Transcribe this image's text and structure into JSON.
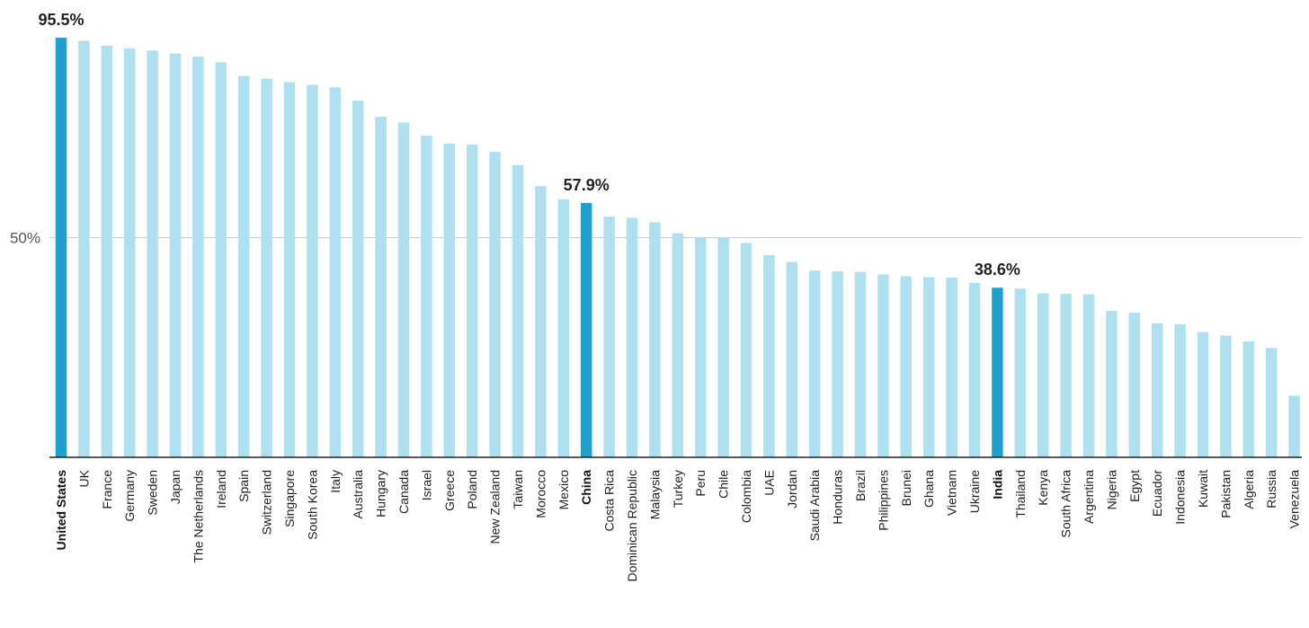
{
  "chart_data": {
    "type": "bar",
    "title": "",
    "xlabel": "",
    "ylabel": "",
    "ylim": [
      0,
      100
    ],
    "grid": "horizontal line at 50%",
    "y_ticks": [
      {
        "value": 50,
        "label": "50%"
      }
    ],
    "highlight_color": "#1ea2cd",
    "base_color": "#aee0ef",
    "categories": [
      "United States",
      "UK",
      "France",
      "Germany",
      "Sweden",
      "Japan",
      "The Netherlands",
      "Ireland",
      "Spain",
      "Switzerland",
      "Singapore",
      "South Korea",
      "Italy",
      "Australia",
      "Hungary",
      "Canada",
      "Israel",
      "Greece",
      "Poland",
      "New Zealand",
      "Taiwan",
      "Morocco",
      "Mexico",
      "China",
      "Costa Rica",
      "Dominican Republic",
      "Malaysia",
      "Turkey",
      "Peru",
      "Chile",
      "Colombia",
      "UAE",
      "Jordan",
      "Saudi Arabia",
      "Honduras",
      "Brazil",
      "Philippines",
      "Brunei",
      "Ghana",
      "Vietnam",
      "Ukraine",
      "India",
      "Thailand",
      "Kenya",
      "South Africa",
      "Argentina",
      "Nigeria",
      "Egypt",
      "Ecuador",
      "Indonesia",
      "Kuwait",
      "Pakistan",
      "Algeria",
      "Russia",
      "Venezuela"
    ],
    "values": [
      95.5,
      94.8,
      93.7,
      93.1,
      92.6,
      91.9,
      91.2,
      89.9,
      86.8,
      86.2,
      85.4,
      84.8,
      84.2,
      81.2,
      77.5,
      76.2,
      73.2,
      71.4,
      71.2,
      69.5,
      66.5,
      61.7,
      58.7,
      57.9,
      54.8,
      54.5,
      53.5,
      51.0,
      50.0,
      50.0,
      48.8,
      46.0,
      44.5,
      42.5,
      42.3,
      42.2,
      41.6,
      41.2,
      41.0,
      40.9,
      39.7,
      38.6,
      38.4,
      37.3,
      37.2,
      37.1,
      33.3,
      32.9,
      30.5,
      30.3,
      28.5,
      27.7,
      26.4,
      24.9,
      14.0
    ],
    "highlighted": [
      "United States",
      "China",
      "India"
    ],
    "data_labels": [
      {
        "category": "United States",
        "label": "95.5%"
      },
      {
        "category": "China",
        "label": "57.9%"
      },
      {
        "category": "India",
        "label": "38.6%"
      }
    ]
  }
}
